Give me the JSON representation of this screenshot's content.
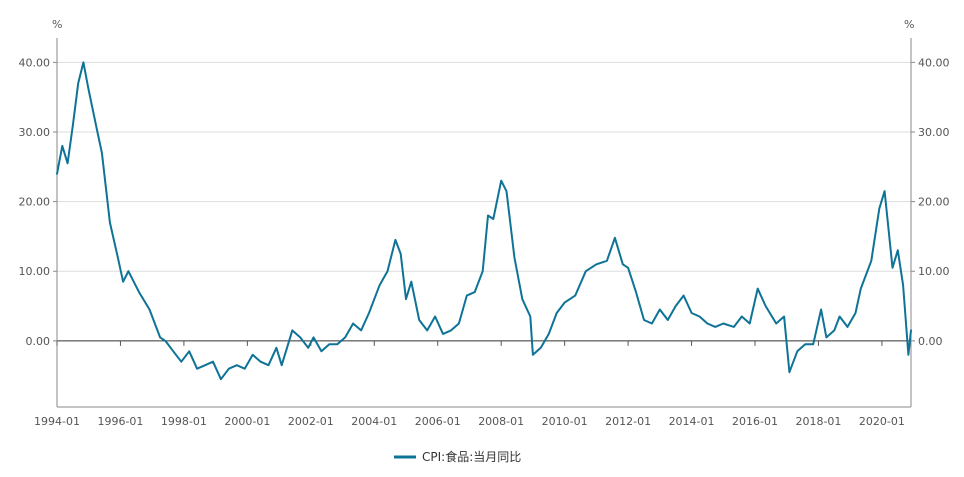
{
  "chart_data": {
    "type": "line",
    "title": "",
    "xlabel": "",
    "ylabel": "",
    "y_unit_left": "%",
    "y_unit_right": "%",
    "ylim": [
      -9.5,
      43.5
    ],
    "y_ticks": [
      0,
      10,
      20,
      30,
      40
    ],
    "y_tick_labels": [
      "0.00",
      "10.00",
      "20.00",
      "30.00",
      "40.00"
    ],
    "x_tick_labels": [
      "1994-01",
      "1996-01",
      "1998-01",
      "2000-01",
      "2002-01",
      "2004-01",
      "2006-01",
      "2008-01",
      "2010-01",
      "2012-01",
      "2014-01",
      "2016-01",
      "2018-01",
      "2020-01"
    ],
    "x_range": [
      "1994-01",
      "2020-12"
    ],
    "grid": true,
    "legend_position": "bottom-center",
    "series_color": "#0e7396",
    "series": [
      {
        "name": "CPI:食品:当月同比",
        "points": [
          [
            "1994-01",
            24.0
          ],
          [
            "1994-03",
            28.0
          ],
          [
            "1994-05",
            25.5
          ],
          [
            "1994-07",
            31.0
          ],
          [
            "1994-09",
            37.0
          ],
          [
            "1994-11",
            40.0
          ],
          [
            "1995-01",
            36.0
          ],
          [
            "1995-04",
            30.5
          ],
          [
            "1995-06",
            27.0
          ],
          [
            "1995-09",
            17.0
          ],
          [
            "1995-12",
            12.0
          ],
          [
            "1996-02",
            8.5
          ],
          [
            "1996-04",
            10.0
          ],
          [
            "1996-08",
            7.0
          ],
          [
            "1996-12",
            4.5
          ],
          [
            "1997-04",
            0.5
          ],
          [
            "1997-06",
            0.0
          ],
          [
            "1997-09",
            -1.5
          ],
          [
            "1997-12",
            -3.0
          ],
          [
            "1998-03",
            -1.5
          ],
          [
            "1998-06",
            -4.0
          ],
          [
            "1998-09",
            -3.5
          ],
          [
            "1998-12",
            -3.0
          ],
          [
            "1999-03",
            -5.5
          ],
          [
            "1999-06",
            -4.0
          ],
          [
            "1999-09",
            -3.5
          ],
          [
            "1999-12",
            -4.0
          ],
          [
            "2000-03",
            -2.0
          ],
          [
            "2000-06",
            -3.0
          ],
          [
            "2000-09",
            -3.5
          ],
          [
            "2000-12",
            -1.0
          ],
          [
            "2001-02",
            -3.5
          ],
          [
            "2001-06",
            1.5
          ],
          [
            "2001-09",
            0.5
          ],
          [
            "2001-12",
            -1.0
          ],
          [
            "2002-02",
            0.5
          ],
          [
            "2002-05",
            -1.5
          ],
          [
            "2002-08",
            -0.5
          ],
          [
            "2002-11",
            -0.5
          ],
          [
            "2003-02",
            0.5
          ],
          [
            "2003-05",
            2.5
          ],
          [
            "2003-08",
            1.5
          ],
          [
            "2003-11",
            4.0
          ],
          [
            "2004-03",
            8.0
          ],
          [
            "2004-06",
            10.0
          ],
          [
            "2004-09",
            14.5
          ],
          [
            "2004-11",
            12.5
          ],
          [
            "2005-01",
            6.0
          ],
          [
            "2005-03",
            8.5
          ],
          [
            "2005-06",
            3.0
          ],
          [
            "2005-09",
            1.5
          ],
          [
            "2005-12",
            3.5
          ],
          [
            "2006-03",
            1.0
          ],
          [
            "2006-06",
            1.5
          ],
          [
            "2006-09",
            2.5
          ],
          [
            "2006-12",
            6.5
          ],
          [
            "2007-03",
            7.0
          ],
          [
            "2007-06",
            10.0
          ],
          [
            "2007-08",
            18.0
          ],
          [
            "2007-10",
            17.5
          ],
          [
            "2008-01",
            23.0
          ],
          [
            "2008-03",
            21.5
          ],
          [
            "2008-06",
            12.0
          ],
          [
            "2008-09",
            6.0
          ],
          [
            "2008-12",
            3.5
          ],
          [
            "2009-01",
            -2.0
          ],
          [
            "2009-04",
            -1.0
          ],
          [
            "2009-07",
            1.0
          ],
          [
            "2009-10",
            4.0
          ],
          [
            "2010-01",
            5.5
          ],
          [
            "2010-05",
            6.5
          ],
          [
            "2010-09",
            10.0
          ],
          [
            "2011-01",
            11.0
          ],
          [
            "2011-05",
            11.5
          ],
          [
            "2011-08",
            14.8
          ],
          [
            "2011-11",
            11.0
          ],
          [
            "2012-01",
            10.5
          ],
          [
            "2012-04",
            7.0
          ],
          [
            "2012-07",
            3.0
          ],
          [
            "2012-10",
            2.5
          ],
          [
            "2013-01",
            4.5
          ],
          [
            "2013-04",
            3.0
          ],
          [
            "2013-07",
            5.0
          ],
          [
            "2013-10",
            6.5
          ],
          [
            "2014-01",
            4.0
          ],
          [
            "2014-04",
            3.5
          ],
          [
            "2014-07",
            2.5
          ],
          [
            "2014-10",
            2.0
          ],
          [
            "2015-01",
            2.5
          ],
          [
            "2015-05",
            2.0
          ],
          [
            "2015-08",
            3.5
          ],
          [
            "2015-11",
            2.5
          ],
          [
            "2016-02",
            7.5
          ],
          [
            "2016-05",
            5.0
          ],
          [
            "2016-09",
            2.5
          ],
          [
            "2016-12",
            3.5
          ],
          [
            "2017-02",
            -4.5
          ],
          [
            "2017-05",
            -1.5
          ],
          [
            "2017-08",
            -0.5
          ],
          [
            "2017-11",
            -0.5
          ],
          [
            "2018-02",
            4.5
          ],
          [
            "2018-04",
            0.5
          ],
          [
            "2018-07",
            1.5
          ],
          [
            "2018-09",
            3.5
          ],
          [
            "2018-12",
            2.0
          ],
          [
            "2019-03",
            4.0
          ],
          [
            "2019-05",
            7.5
          ],
          [
            "2019-09",
            11.5
          ],
          [
            "2019-12",
            19.0
          ],
          [
            "2020-02",
            21.5
          ],
          [
            "2020-05",
            10.5
          ],
          [
            "2020-07",
            13.0
          ],
          [
            "2020-09",
            8.0
          ],
          [
            "2020-11",
            -2.0
          ],
          [
            "2020-12",
            1.5
          ]
        ]
      }
    ]
  }
}
